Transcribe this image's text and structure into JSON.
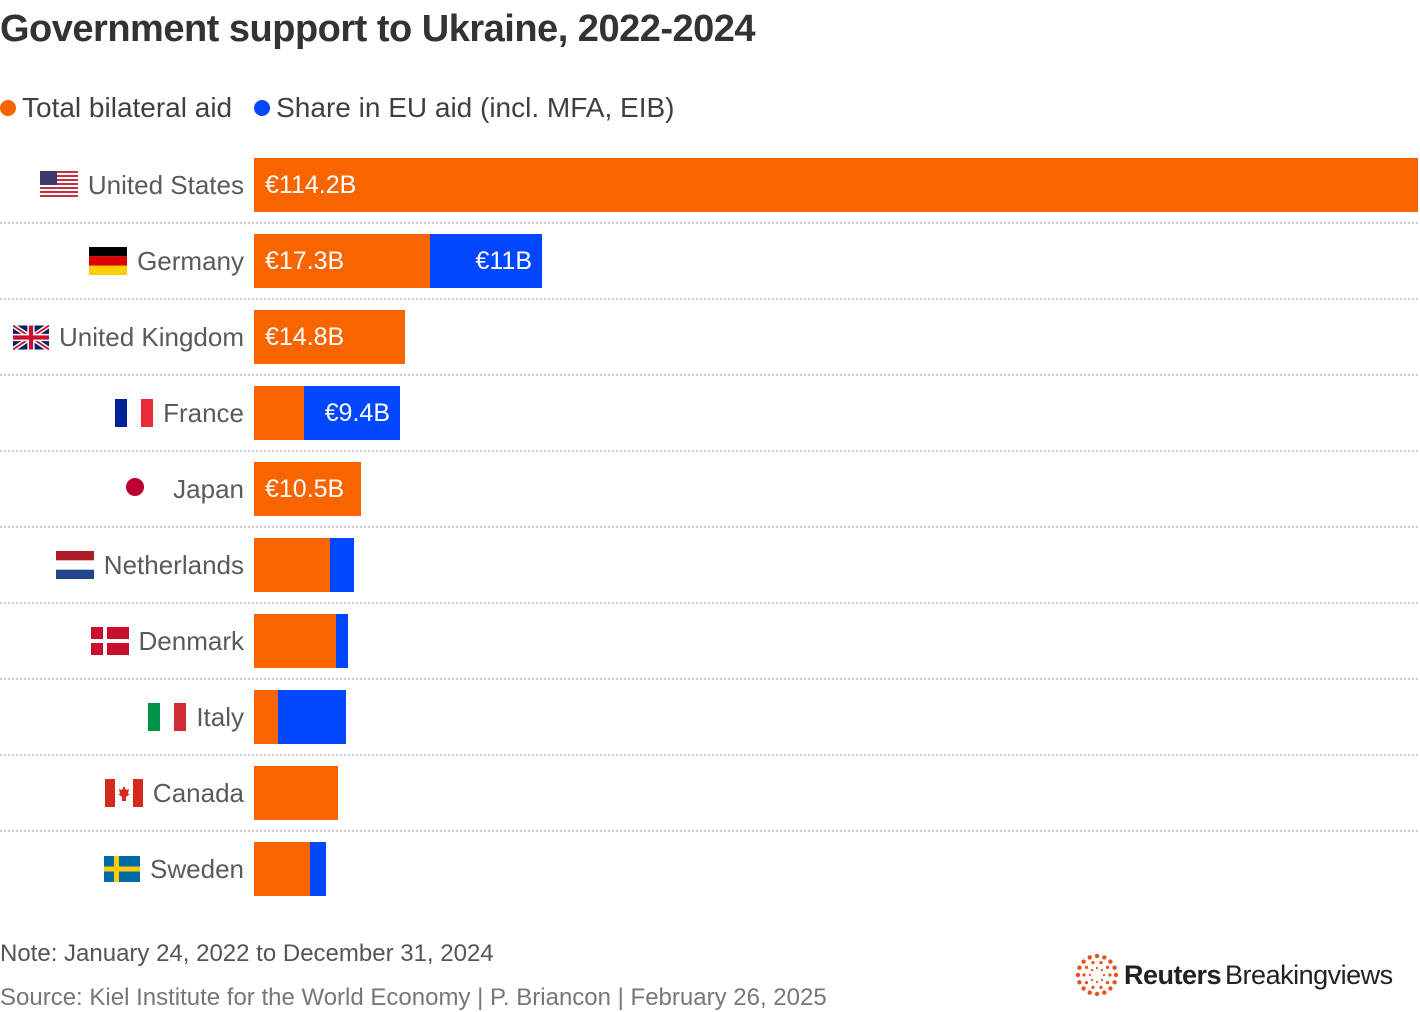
{
  "title": "Government support to Ukraine, 2022-2024",
  "legend": [
    {
      "label": "Total bilateral aid",
      "color": "#f76400"
    },
    {
      "label": "Share in EU aid (incl. MFA, EIB)",
      "color": "#0047ff"
    }
  ],
  "note": "Note: January 24, 2022 to December 31, 2024",
  "source": "Source: Kiel Institute for the World Economy | P. Briancon | February 26, 2025",
  "logo": {
    "bold": "Reuters",
    "regular": "Breakingviews"
  },
  "chart_data": {
    "type": "bar",
    "orientation": "horizontal",
    "stacked": true,
    "unit": "€ billion",
    "title": "Government support to Ukraine, 2022-2024",
    "categories": [
      "United States",
      "Germany",
      "United Kingdom",
      "France",
      "Japan",
      "Netherlands",
      "Denmark",
      "Italy",
      "Canada",
      "Sweden"
    ],
    "flags": [
      "us",
      "de",
      "gb",
      "fr",
      "jp",
      "nl",
      "dk",
      "it",
      "ca",
      "se"
    ],
    "series": [
      {
        "name": "Total bilateral aid",
        "color": "#f76400",
        "values": [
          114.2,
          17.3,
          14.8,
          4.9,
          10.5,
          7.5,
          8.0,
          2.4,
          8.2,
          5.5
        ],
        "labels": [
          "€114.2B",
          "€17.3B",
          "€14.8B",
          "",
          "€10.5B",
          "",
          "",
          "",
          "",
          ""
        ]
      },
      {
        "name": "Share in EU aid (incl. MFA, EIB)",
        "color": "#0047ff",
        "values": [
          0,
          11,
          0,
          9.4,
          0,
          2.4,
          1.2,
          6.7,
          0,
          1.6
        ],
        "labels": [
          "",
          "€11B",
          "",
          "€9.4B",
          "",
          "",
          "",
          "",
          "",
          ""
        ]
      }
    ],
    "xlim": [
      0,
      114.2
    ],
    "grid": false,
    "legend_position": "top-left"
  }
}
